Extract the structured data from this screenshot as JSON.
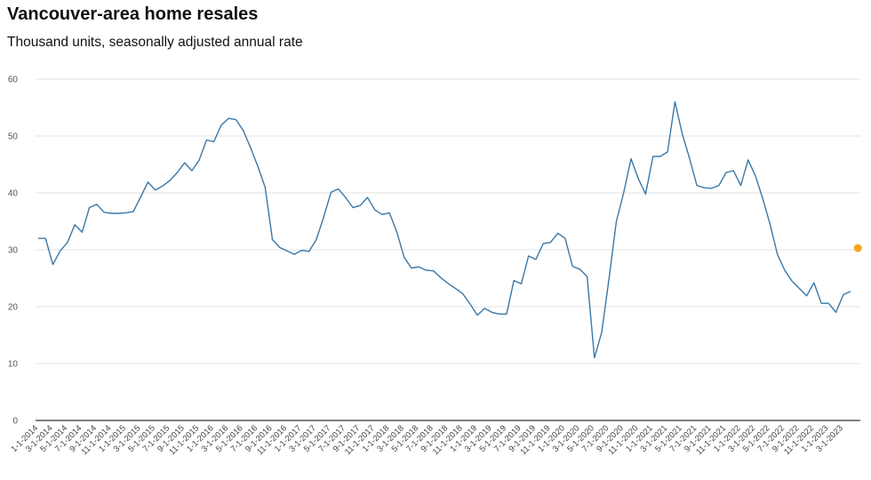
{
  "title": "Vancouver-area home resales",
  "subtitle": "Thousand units, seasonally adjusted annual rate",
  "colors": {
    "line": "#3a78a8",
    "highlight": "#f5a623",
    "grid": "#e3e3e3",
    "axis": "#333333"
  },
  "chart_data": {
    "type": "line",
    "title": "Vancouver-area home resales",
    "subtitle": "Thousand units, seasonally adjusted annual rate",
    "xlabel": "",
    "ylabel": "",
    "ylim": [
      0,
      60
    ],
    "yticks": [
      0,
      10,
      20,
      30,
      40,
      50,
      60
    ],
    "grid": true,
    "x": [
      "1-1-2014",
      "2-1-2014",
      "3-1-2014",
      "4-1-2014",
      "5-1-2014",
      "6-1-2014",
      "7-1-2014",
      "8-1-2014",
      "9-1-2014",
      "10-1-2014",
      "11-1-2014",
      "12-1-2014",
      "1-1-2015",
      "2-1-2015",
      "3-1-2015",
      "4-1-2015",
      "5-1-2015",
      "6-1-2015",
      "7-1-2015",
      "8-1-2015",
      "9-1-2015",
      "10-1-2015",
      "11-1-2015",
      "12-1-2015",
      "1-1-2016",
      "2-1-2016",
      "3-1-2016",
      "4-1-2016",
      "5-1-2016",
      "6-1-2016",
      "7-1-2016",
      "8-1-2016",
      "9-1-2016",
      "10-1-2016",
      "11-1-2016",
      "12-1-2016",
      "1-1-2017",
      "2-1-2017",
      "3-1-2017",
      "4-1-2017",
      "5-1-2017",
      "6-1-2017",
      "7-1-2017",
      "8-1-2017",
      "9-1-2017",
      "10-1-2017",
      "11-1-2017",
      "12-1-2017",
      "1-1-2018",
      "2-1-2018",
      "3-1-2018",
      "4-1-2018",
      "5-1-2018",
      "6-1-2018",
      "7-1-2018",
      "8-1-2018",
      "9-1-2018",
      "10-1-2018",
      "11-1-2018",
      "12-1-2018",
      "1-1-2019",
      "2-1-2019",
      "3-1-2019",
      "4-1-2019",
      "5-1-2019",
      "6-1-2019",
      "7-1-2019",
      "8-1-2019",
      "9-1-2019",
      "10-1-2019",
      "11-1-2019",
      "12-1-2019",
      "1-1-2020",
      "2-1-2020",
      "3-1-2020",
      "4-1-2020",
      "5-1-2020",
      "6-1-2020",
      "7-1-2020",
      "8-1-2020",
      "9-1-2020",
      "10-1-2020",
      "11-1-2020",
      "12-1-2020",
      "1-1-2021",
      "2-1-2021",
      "3-1-2021",
      "4-1-2021",
      "5-1-2021",
      "6-1-2021",
      "7-1-2021",
      "8-1-2021",
      "9-1-2021",
      "10-1-2021",
      "11-1-2021",
      "12-1-2021",
      "1-1-2022",
      "2-1-2022",
      "3-1-2022",
      "4-1-2022",
      "5-1-2022",
      "6-1-2022",
      "7-1-2022",
      "8-1-2022",
      "9-1-2022",
      "10-1-2022",
      "11-1-2022",
      "12-1-2022",
      "1-1-2023",
      "2-1-2023",
      "3-1-2023",
      "4-1-2023"
    ],
    "xtick_labels": [
      "1-1-2014",
      "3-1-2014",
      "5-1-2014",
      "7-1-2014",
      "9-1-2014",
      "11-1-2014",
      "1-1-2015",
      "3-1-2015",
      "5-1-2015",
      "7-1-2015",
      "9-1-2015",
      "11-1-2015",
      "1-1-2016",
      "3-1-2016",
      "5-1-2016",
      "7-1-2016",
      "9-1-2016",
      "11-1-2016",
      "1-1-2017",
      "3-1-2017",
      "5-1-2017",
      "7-1-2017",
      "9-1-2017",
      "11-1-2017",
      "1-1-2018",
      "3-1-2018",
      "5-1-2018",
      "7-1-2018",
      "9-1-2018",
      "11-1-2018",
      "1-1-2019",
      "3-1-2019",
      "5-1-2019",
      "7-1-2019",
      "9-1-2019",
      "11-1-2019",
      "1-1-2020",
      "3-1-2020",
      "5-1-2020",
      "7-1-2020",
      "9-1-2020",
      "11-1-2020",
      "1-1-2021",
      "3-1-2021",
      "5-1-2021",
      "7-1-2021",
      "9-1-2021",
      "11-1-2021",
      "1-1-2022",
      "3-1-2022",
      "5-1-2022",
      "7-1-2022",
      "9-1-2022",
      "11-1-2022",
      "1-1-2023",
      "3-1-2023"
    ],
    "series": [
      {
        "values": [
          32.0,
          32.0,
          27.4,
          29.8,
          31.3,
          34.4,
          33.1,
          37.4,
          38.0,
          36.6,
          36.4,
          36.4,
          36.5,
          36.7,
          39.3,
          41.9,
          40.5,
          41.2,
          42.2,
          43.6,
          45.3,
          43.9,
          45.8,
          49.3,
          49.0,
          51.9,
          53.1,
          52.9,
          51.0,
          48.0,
          44.7,
          41.0,
          31.8,
          30.4,
          29.8,
          29.2,
          29.9,
          29.7,
          31.8,
          35.7,
          40.1,
          40.7,
          39.2,
          37.4,
          37.8,
          39.2,
          37.0,
          36.2,
          36.5,
          33.1,
          28.7,
          26.8,
          27.0,
          26.4,
          26.3,
          25.1,
          24.1,
          23.2,
          22.3,
          20.5,
          18.5,
          19.7,
          19.0,
          18.7,
          18.7,
          24.6,
          24.0,
          28.9,
          28.3,
          31.1,
          31.3,
          32.9,
          32.0,
          27.1,
          26.6,
          25.3,
          11.0,
          15.5,
          25.0,
          35.0,
          40.0,
          46.0,
          42.5,
          39.8,
          46.4,
          46.4,
          47.2,
          56.0,
          50.4,
          46.1,
          41.3,
          40.9,
          40.8,
          41.3,
          43.6,
          43.9,
          41.3,
          45.8,
          43.0,
          39.0,
          34.5,
          29.2,
          26.4,
          24.5,
          23.2,
          21.9,
          24.2,
          20.6,
          20.6,
          19.0,
          22.1,
          22.7
        ]
      }
    ],
    "highlight_point": {
      "x": "5-1-2023",
      "value": 30.3
    }
  }
}
